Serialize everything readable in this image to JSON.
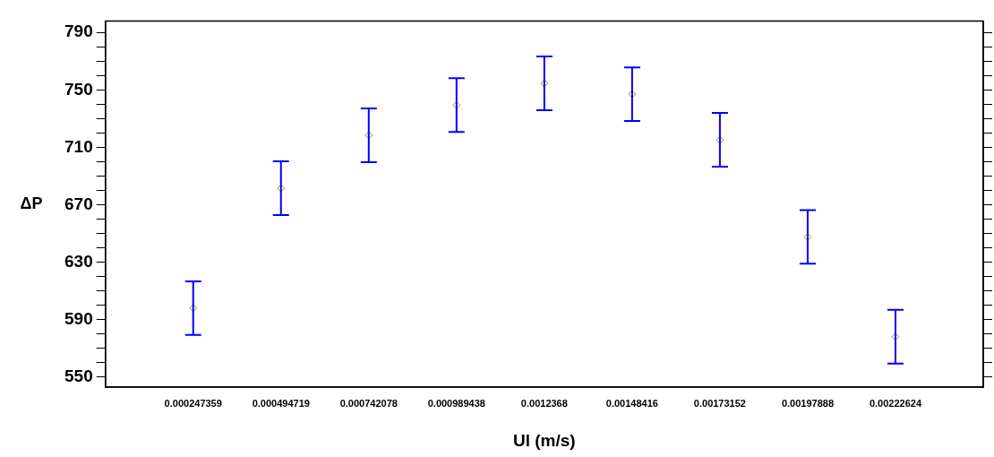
{
  "chart_data": {
    "type": "scatter",
    "xlabel": "Ul (m/s)",
    "ylabel": "ΔP",
    "categories": [
      "0.000247359",
      "0.000494719",
      "0.000742078",
      "0.000989438",
      "0.0012368",
      "0.00148416",
      "0.00173152",
      "0.00197888",
      "0.00222624"
    ],
    "series": [
      {
        "color": "#9a9a00",
        "values": [
          598,
          681.5,
          718.4,
          739.4,
          754.6,
          747,
          715.2,
          647.6,
          578.1
        ],
        "errors": [
          18.7,
          18.7,
          18.7,
          18.7,
          18.7,
          18.7,
          18.7,
          18.7,
          18.7
        ]
      }
    ],
    "ylim": [
      543,
      798
    ],
    "yticks": [
      550,
      {
        "value": 560,
        "label": null
      },
      {
        "value": 570,
        "label": null
      },
      {
        "value": 580,
        "label": null
      },
      590,
      {
        "value": 600,
        "label": null
      },
      {
        "value": 610,
        "label": null
      },
      {
        "value": 620,
        "label": null
      },
      630,
      {
        "value": 640,
        "label": null
      },
      {
        "value": 650,
        "label": null
      },
      {
        "value": 660,
        "label": null
      },
      670,
      {
        "value": 680,
        "label": null
      },
      {
        "value": 690,
        "label": null
      },
      {
        "value": 700,
        "label": null
      },
      710,
      {
        "value": 720,
        "label": null
      },
      {
        "value": 730,
        "label": null
      },
      {
        "value": 740,
        "label": null
      },
      750,
      {
        "value": 760,
        "label": null
      },
      {
        "value": 770,
        "label": null
      },
      {
        "value": 780,
        "label": null
      },
      790
    ],
    "marker": "diamond",
    "grid": false,
    "legend": false
  }
}
